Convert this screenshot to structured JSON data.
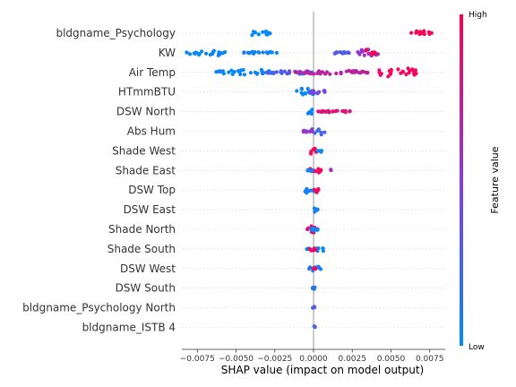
{
  "chart_data": {
    "type": "scatter",
    "subtype": "shap-beeswarm",
    "xlabel": "SHAP value (impact on model output)",
    "xlim": [
      -0.0085,
      0.0085
    ],
    "xticks": [
      -0.0075,
      -0.005,
      -0.0025,
      0.0,
      0.0025,
      0.005,
      0.0075
    ],
    "xtick_labels": [
      "−0.0075",
      "−0.0050",
      "−0.0025",
      "0.0000",
      "0.0025",
      "0.0050",
      "0.0075"
    ],
    "colorbar": {
      "title": "Feature value",
      "high_label": "High",
      "low_label": "Low",
      "low_color": "#008bfb",
      "high_color": "#ff0052"
    },
    "grid": false,
    "features": [
      {
        "name": "bldgname_Psychology",
        "clusters": [
          {
            "x": [
              -0.0042,
              -0.0028
            ],
            "v": 0.0,
            "w": 3
          },
          {
            "x": [
              0.0063,
              0.0077
            ],
            "v": 1.0,
            "w": 3
          }
        ]
      },
      {
        "name": "KW",
        "clusters": [
          {
            "x": [
              -0.0082,
              -0.0056
            ],
            "v": 0.02,
            "w": 3
          },
          {
            "x": [
              -0.0048,
              -0.0022
            ],
            "v": 0.05,
            "w": 1
          },
          {
            "x": [
              0.001,
              0.0023
            ],
            "v": 0.25,
            "w": 1
          },
          {
            "x": [
              0.0028,
              0.0043
            ],
            "v": 0.55,
            "w": 4
          },
          {
            "x": [
              0.0032,
              0.004
            ],
            "v": 1.0,
            "w": 4
          }
        ]
      },
      {
        "name": "Air Temp",
        "clusters": [
          {
            "x": [
              -0.0063,
              -0.0025
            ],
            "v": 0.02,
            "w": 3
          },
          {
            "x": [
              -0.003,
              0.0
            ],
            "v": 0.3,
            "w": 2
          },
          {
            "x": [
              -0.0012,
              0.0035
            ],
            "v": 0.7,
            "w": 2
          },
          {
            "x": [
              0.004,
              0.0068
            ],
            "v": 0.95,
            "w": 5
          }
        ]
      },
      {
        "name": "HTmmBTU",
        "clusters": [
          {
            "x": [
              -0.0011,
              0.0004
            ],
            "v": 0.03,
            "w": 4
          },
          {
            "x": [
              -0.0003,
              0.0008
            ],
            "v": 0.45,
            "w": 3
          }
        ]
      },
      {
        "name": "DSW North",
        "clusters": [
          {
            "x": [
              -0.0006,
              0.0001
            ],
            "v": 0.03,
            "w": 3
          },
          {
            "x": [
              0.0003,
              0.0027
            ],
            "v": 0.85,
            "w": 1
          }
        ]
      },
      {
        "name": "Abs Hum",
        "clusters": [
          {
            "x": [
              -0.0005,
              0.0008
            ],
            "v": 0.2,
            "w": 4
          },
          {
            "x": [
              -0.0007,
              0.0
            ],
            "v": 0.6,
            "w": 2
          }
        ]
      },
      {
        "name": "Shade West",
        "clusters": [
          {
            "x": [
              -0.0003,
              0.0002
            ],
            "v": 0.97,
            "w": 4
          },
          {
            "x": [
              0.0002,
              0.0006
            ],
            "v": 0.05,
            "w": 2
          }
        ]
      },
      {
        "name": "Shade East",
        "clusters": [
          {
            "x": [
              -0.0003,
              0.0005
            ],
            "v": 0.95,
            "w": 3
          },
          {
            "x": [
              -0.0004,
              0.0001
            ],
            "v": 0.1,
            "w": 2
          },
          {
            "x": [
              0.0011,
              0.0011
            ],
            "v": 0.6,
            "w": 1
          }
        ]
      },
      {
        "name": "DSW Top",
        "clusters": [
          {
            "x": [
              -0.0006,
              0.0001
            ],
            "v": 0.05,
            "w": 4
          },
          {
            "x": [
              0.0,
              0.0004
            ],
            "v": 0.95,
            "w": 4
          }
        ]
      },
      {
        "name": "DSW East",
        "clusters": [
          {
            "x": [
              -0.0002,
              0.0003
            ],
            "v": 0.1,
            "w": 3
          }
        ]
      },
      {
        "name": "Shade North",
        "clusters": [
          {
            "x": [
              -0.0004,
              0.0003
            ],
            "v": 0.95,
            "w": 4
          },
          {
            "x": [
              -0.0003,
              0.0003
            ],
            "v": 0.05,
            "w": 2
          }
        ]
      },
      {
        "name": "Shade South",
        "clusters": [
          {
            "x": [
              -0.0005,
              0.0009
            ],
            "v": 0.05,
            "w": 3
          },
          {
            "x": [
              -0.0003,
              0.0002
            ],
            "v": 0.95,
            "w": 2
          }
        ]
      },
      {
        "name": "DSW West",
        "clusters": [
          {
            "x": [
              -0.0003,
              0.0005
            ],
            "v": 0.05,
            "w": 3
          },
          {
            "x": [
              -0.0001,
              0.0002
            ],
            "v": 0.9,
            "w": 1
          }
        ]
      },
      {
        "name": "DSW South",
        "clusters": [
          {
            "x": [
              -0.0001,
              0.0002
            ],
            "v": 0.1,
            "w": 3
          }
        ]
      },
      {
        "name": "bldgname_Psychology North",
        "clusters": [
          {
            "x": [
              -5e-05,
              0.0001
            ],
            "v": 0.3,
            "w": 3
          }
        ]
      },
      {
        "name": "bldgname_ISTB 4",
        "clusters": [
          {
            "x": [
              -5e-05,
              0.0001
            ],
            "v": 0.2,
            "w": 3
          }
        ]
      }
    ]
  }
}
